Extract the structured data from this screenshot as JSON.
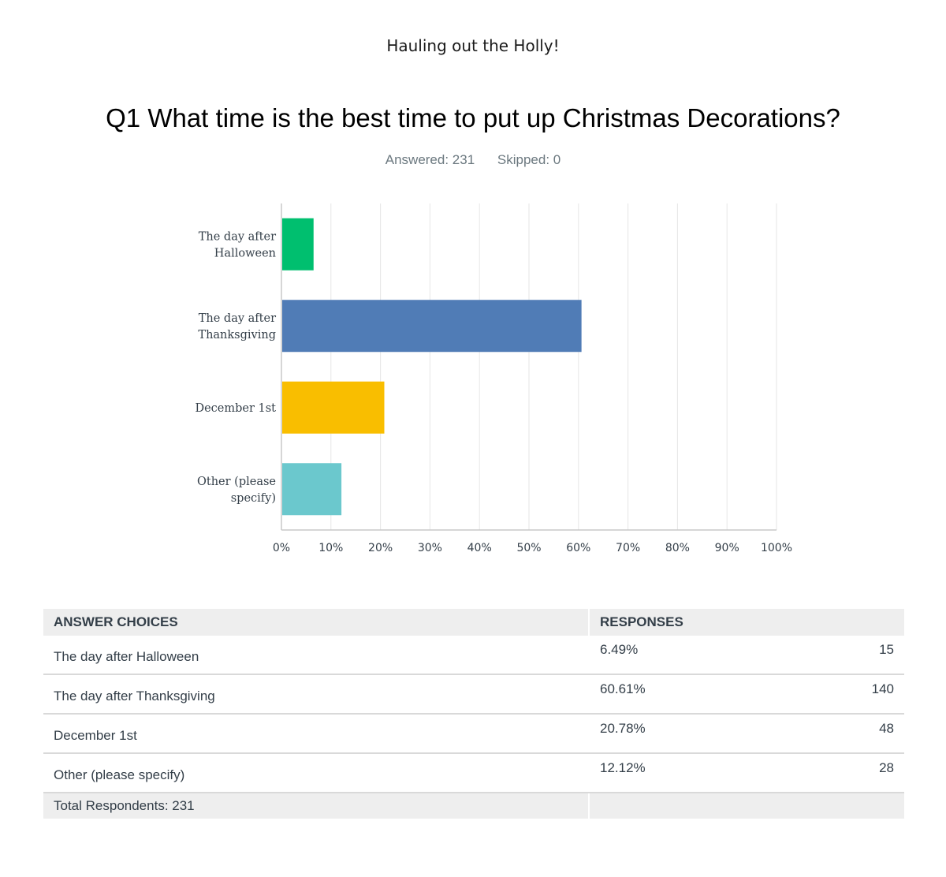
{
  "survey": {
    "title": "Hauling out the Holly!"
  },
  "question": {
    "title": "Q1 What time is the best time to put up Christmas Decorations?",
    "answered": "Answered: 231",
    "skipped": "Skipped: 0"
  },
  "chart_data": {
    "type": "bar",
    "orientation": "horizontal",
    "categories": [
      [
        "The day after",
        "Halloween"
      ],
      [
        "The day after",
        "Thanksgiving"
      ],
      [
        "December 1st"
      ],
      [
        "Other (please",
        "specify)"
      ]
    ],
    "values": [
      6.49,
      60.61,
      20.78,
      12.12
    ],
    "colors": [
      "#00bf6f",
      "#507cb6",
      "#f9be00",
      "#6bc8cd"
    ],
    "xlim": [
      0,
      100
    ],
    "xticks": [
      "0%",
      "10%",
      "20%",
      "30%",
      "40%",
      "50%",
      "60%",
      "70%",
      "80%",
      "90%",
      "100%"
    ],
    "grid": true
  },
  "table": {
    "headers": [
      "ANSWER CHOICES",
      "RESPONSES"
    ],
    "rows": [
      {
        "choice": "The day after Halloween",
        "percent": "6.49%",
        "count": "15"
      },
      {
        "choice": "The day after Thanksgiving",
        "percent": "60.61%",
        "count": "140"
      },
      {
        "choice": "December 1st",
        "percent": "20.78%",
        "count": "48"
      },
      {
        "choice": "Other (please specify)",
        "percent": "12.12%",
        "count": "28"
      }
    ],
    "total": "Total Respondents: 231"
  }
}
